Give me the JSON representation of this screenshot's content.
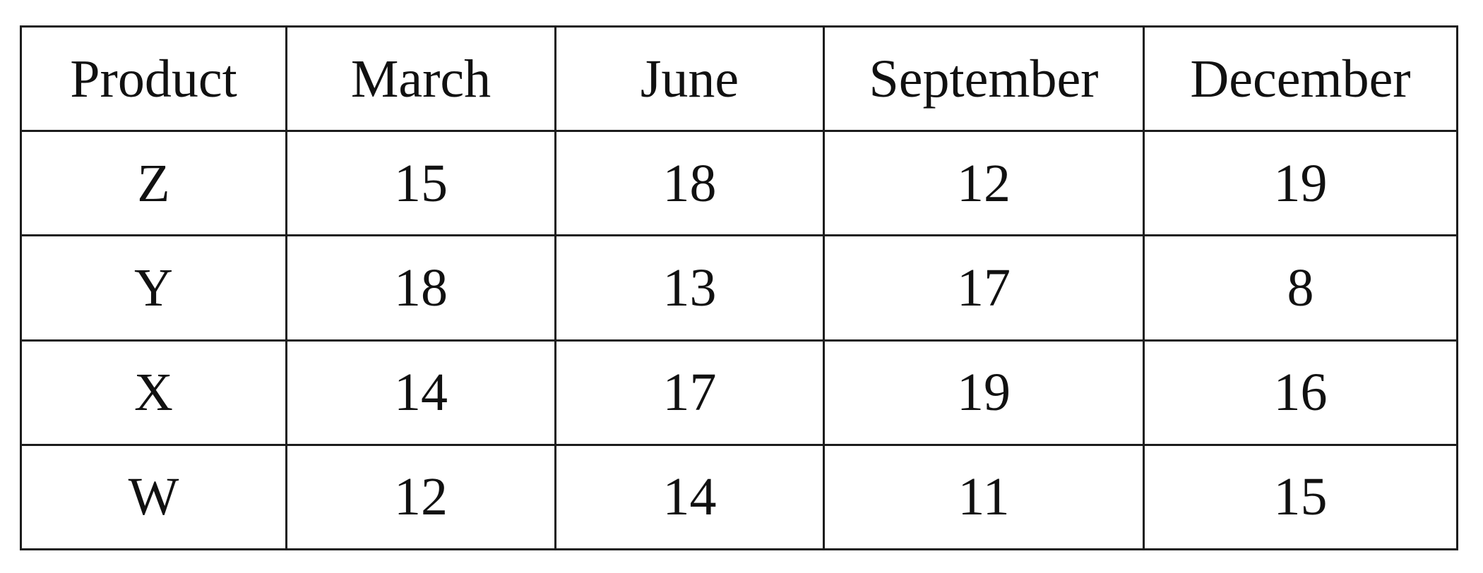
{
  "table": {
    "headers": [
      "Product",
      "March",
      "June",
      "September",
      "December"
    ],
    "rows": [
      [
        "Z",
        "15",
        "18",
        "12",
        "19"
      ],
      [
        "Y",
        "18",
        "13",
        "17",
        "8"
      ],
      [
        "X",
        "14",
        "17",
        "19",
        "16"
      ],
      [
        "W",
        "12",
        "14",
        "11",
        "15"
      ]
    ]
  },
  "chart_data": {
    "type": "table",
    "columns": [
      "Product",
      "March",
      "June",
      "September",
      "December"
    ],
    "rows": [
      {
        "Product": "Z",
        "March": 15,
        "June": 18,
        "September": 12,
        "December": 19
      },
      {
        "Product": "Y",
        "March": 18,
        "June": 13,
        "September": 17,
        "December": 8
      },
      {
        "Product": "X",
        "March": 14,
        "June": 17,
        "September": 19,
        "December": 16
      },
      {
        "Product": "W",
        "March": 12,
        "June": 14,
        "September": 11,
        "December": 15
      }
    ]
  }
}
